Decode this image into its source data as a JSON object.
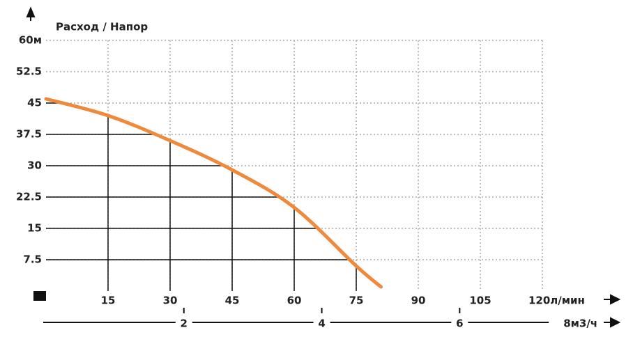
{
  "chart_data": {
    "type": "line",
    "title": "Расход / Напор",
    "xlim": [
      0,
      120
    ],
    "xticks": [
      15,
      30,
      45,
      60,
      75,
      90,
      105,
      {
        "value": 120,
        "label": "120л/мин"
      }
    ],
    "ylim": [
      0,
      60
    ],
    "yticks": [
      7.5,
      15,
      22.5,
      30,
      37.5,
      45,
      52.5,
      {
        "value": 60,
        "label": "60м"
      }
    ],
    "x2lim": [
      0,
      7.2
    ],
    "x2ticks": [
      2,
      4,
      6,
      {
        "value": 8,
        "label": "8м3/ч"
      }
    ],
    "grid": true,
    "series": [
      {
        "color": "#ef8a3d",
        "x": [
          0,
          15,
          30,
          45,
          60,
          75,
          81
        ],
        "values": [
          46,
          42,
          36,
          29,
          20,
          6,
          1
        ]
      }
    ]
  }
}
